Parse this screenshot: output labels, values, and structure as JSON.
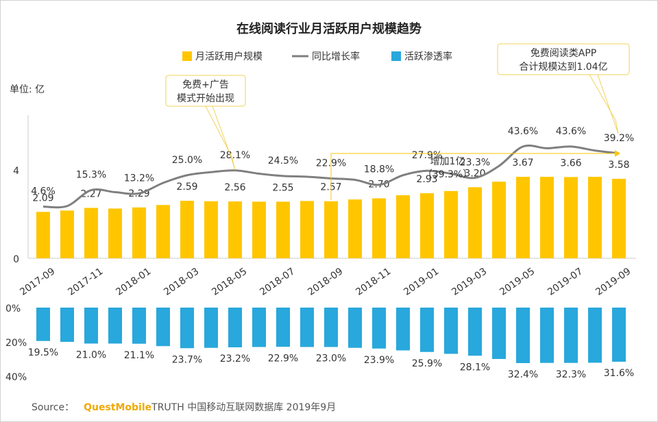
{
  "chart_data": {
    "type": "bar+line",
    "title": "在线阅读行业月活跃用户规模趋势",
    "unit_label": "单位: 亿",
    "legend": [
      {
        "name": "月活跃用户规模",
        "color": "#FFC600",
        "marker": "bar"
      },
      {
        "name": "同比增长率",
        "color": "#7F7F7F",
        "marker": "line"
      },
      {
        "name": "活跃渗透率",
        "color": "#28A8DC",
        "marker": "bar"
      }
    ],
    "x_tick_labels": [
      "2017-09",
      "2017-11",
      "2018-01",
      "2018-03",
      "2018-05",
      "2018-07",
      "2018-09",
      "2018-11",
      "2019-01",
      "2019-03",
      "2019-05",
      "2019-07",
      "2019-09"
    ],
    "series": [
      {
        "name": "月活跃用户规模",
        "values": [
          2.09,
          2.15,
          2.27,
          2.24,
          2.29,
          2.4,
          2.59,
          2.57,
          2.56,
          2.55,
          2.55,
          2.58,
          2.57,
          2.65,
          2.7,
          2.84,
          2.93,
          3.03,
          3.2,
          3.45,
          3.67,
          3.67,
          3.66,
          3.67,
          3.58
        ],
        "labels": [
          "2.09",
          "",
          "2.27",
          "",
          "2.29",
          "",
          "2.59",
          "",
          "2.56",
          "",
          "2.55",
          "",
          "2.57",
          "",
          "2.70",
          "",
          "2.93",
          "",
          "3.20",
          "",
          "3.67",
          "",
          "3.66",
          "",
          "3.58"
        ]
      },
      {
        "name": "同比增长率",
        "values": [
          4.6,
          5.0,
          15.3,
          14.0,
          13.2,
          20.0,
          25.0,
          27.0,
          28.1,
          26.0,
          24.5,
          24.0,
          22.9,
          22.0,
          18.8,
          25.0,
          27.9,
          26.0,
          23.3,
          31.0,
          43.6,
          42.5,
          43.6,
          41.0,
          39.2
        ],
        "labels": [
          "4.6%",
          "",
          "15.3%",
          "",
          "13.2%",
          "",
          "25.0%",
          "",
          "28.1%",
          "",
          "24.5%",
          "",
          "22.9%",
          "",
          "18.8%",
          "",
          "27.9%",
          "",
          "23.3%",
          "",
          "43.6%",
          "",
          "43.6%",
          "",
          "39.2%"
        ]
      },
      {
        "name": "活跃渗透率",
        "values": [
          19.5,
          20.0,
          21.0,
          21.0,
          21.1,
          22.5,
          23.7,
          23.5,
          23.2,
          23.0,
          22.9,
          23.0,
          23.0,
          23.5,
          23.9,
          25.0,
          25.9,
          27.0,
          28.1,
          30.0,
          32.4,
          32.3,
          32.3,
          32.2,
          31.6
        ],
        "labels": [
          "19.5%",
          "",
          "21.0%",
          "",
          "21.1%",
          "",
          "23.7%",
          "",
          "23.2%",
          "",
          "22.9%",
          "",
          "23.0%",
          "",
          "23.9%",
          "",
          "25.9%",
          "",
          "28.1%",
          "",
          "32.4%",
          "",
          "32.3%",
          "",
          "31.6%"
        ]
      }
    ],
    "y_axis_top": {
      "range": [
        0,
        5.5
      ],
      "ticks": [
        "0",
        "4"
      ]
    },
    "y_axis_bottom": {
      "range": [
        0,
        40
      ],
      "ticks": [
        "0%",
        "20%",
        "40%"
      ]
    },
    "annotations": [
      {
        "id": "ad-model",
        "lines": [
          "免费+广告",
          "模式开始出现"
        ],
        "points_to": "2018-05"
      },
      {
        "id": "free-apps",
        "lines": [
          "免费阅读类APP",
          "合计规模达到1.04亿"
        ],
        "points_to": "2019-09"
      },
      {
        "id": "increase",
        "lines": [
          "增加1亿",
          "（39.3%）"
        ],
        "from": "2018-09",
        "to": "2019-09"
      }
    ],
    "source": {
      "prefix": "Source：",
      "brand": "QuestMobile",
      "text": "TRUTH 中国移动互联网数据库 2019年9月"
    }
  }
}
